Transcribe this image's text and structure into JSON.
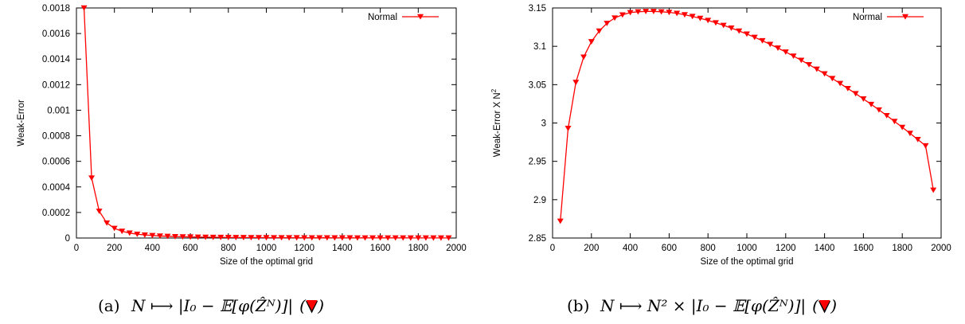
{
  "chart_data": [
    {
      "type": "line",
      "xlabel": "Size of the optimal grid",
      "ylabel": "Weak-Error",
      "xlim": [
        0,
        2000
      ],
      "ylim": [
        0,
        0.0018
      ],
      "xticks": [
        "0",
        "200",
        "400",
        "600",
        "800",
        "1000",
        "1200",
        "1400",
        "1600",
        "1800",
        "2000"
      ],
      "yticks": [
        "0",
        "0.0002",
        "0.0004",
        "0.0006",
        "0.0008",
        "0.001",
        "0.0012",
        "0.0014",
        "0.0016",
        "0.0018"
      ],
      "legend_position": "top-right",
      "grid": false,
      "series_color": "#ff0000",
      "marker": "down-triangle",
      "caption": {
        "label": "(a)",
        "formula": "N ⟼ |I₀ − 𝔼[φ(Ẑᴺ)]|",
        "marker_note": "(▼)"
      },
      "series": [
        {
          "name": "Normal",
          "x": [
            40,
            80,
            120,
            160,
            200,
            240,
            280,
            320,
            360,
            400,
            440,
            480,
            520,
            560,
            600,
            640,
            680,
            720,
            760,
            800,
            840,
            880,
            920,
            960,
            1000,
            1040,
            1080,
            1120,
            1160,
            1200,
            1240,
            1280,
            1320,
            1360,
            1400,
            1440,
            1480,
            1520,
            1560,
            1600,
            1640,
            1680,
            1720,
            1760,
            1800,
            1840,
            1880,
            1920,
            1960
          ],
          "y": [
            0.0018,
            0.00047,
            0.00021,
            0.000118,
            7.6e-05,
            5.3e-05,
            3.9e-05,
            3e-05,
            2.4e-05,
            2e-05,
            1.6e-05,
            1.35e-05,
            1.15e-05,
            1e-05,
            8.7e-06,
            7.7e-06,
            6.8e-06,
            6.1e-06,
            5.4e-06,
            4.9e-06,
            4.4e-06,
            4e-06,
            3.7e-06,
            3.4e-06,
            3.1e-06,
            2.9e-06,
            2.7e-06,
            2.5e-06,
            2.3e-06,
            2.2e-06,
            2e-06,
            1.9e-06,
            1.8e-06,
            1.7e-06,
            1.6e-06,
            1.5e-06,
            1.4e-06,
            1.3e-06,
            1.3e-06,
            1.2e-06,
            1.2e-06,
            1.1e-06,
            1.1e-06,
            1e-06,
            1e-06,
            9e-07,
            9e-07,
            9e-07,
            8e-07
          ]
        }
      ]
    },
    {
      "type": "line",
      "xlabel": "Size of the optimal grid",
      "ylabel": "Weak-Error X N",
      "ylabel_superscript": "2",
      "xlim": [
        0,
        2000
      ],
      "ylim": [
        2.85,
        3.15
      ],
      "xticks": [
        "0",
        "200",
        "400",
        "600",
        "800",
        "1000",
        "1200",
        "1400",
        "1600",
        "1800",
        "2000"
      ],
      "yticks": [
        "2.85",
        "2.9",
        "2.95",
        "3",
        "3.05",
        "3.1",
        "3.15"
      ],
      "legend_position": "top-right",
      "grid": false,
      "series_color": "#ff0000",
      "marker": "down-triangle",
      "caption": {
        "label": "(b)",
        "formula": "N ⟼ N² × |I₀ − 𝔼[φ(Ẑᴺ)]|",
        "marker_note": "(▼)"
      },
      "series": [
        {
          "name": "Normal",
          "x": [
            40,
            80,
            120,
            160,
            200,
            240,
            280,
            320,
            360,
            400,
            440,
            480,
            520,
            560,
            600,
            640,
            680,
            720,
            760,
            800,
            840,
            880,
            920,
            960,
            1000,
            1040,
            1080,
            1120,
            1160,
            1200,
            1240,
            1280,
            1320,
            1360,
            1400,
            1440,
            1480,
            1520,
            1560,
            1600,
            1640,
            1680,
            1720,
            1760,
            1800,
            1840,
            1880,
            1920,
            1960
          ],
          "y": [
            2.872,
            2.993,
            3.053,
            3.086,
            3.106,
            3.12,
            3.13,
            3.137,
            3.141,
            3.144,
            3.145,
            3.1455,
            3.1455,
            3.145,
            3.1443,
            3.143,
            3.1412,
            3.139,
            3.1365,
            3.1338,
            3.1307,
            3.1274,
            3.1238,
            3.12,
            3.116,
            3.1118,
            3.1073,
            3.1026,
            3.0977,
            3.0926,
            3.0873,
            3.0818,
            3.0761,
            3.0702,
            3.0642,
            3.058,
            3.0516,
            3.045,
            3.0383,
            3.0314,
            3.0243,
            3.0171,
            3.0097,
            3.0021,
            2.9944,
            2.9865,
            2.9785,
            2.9703,
            2.9125
          ]
        }
      ]
    }
  ]
}
